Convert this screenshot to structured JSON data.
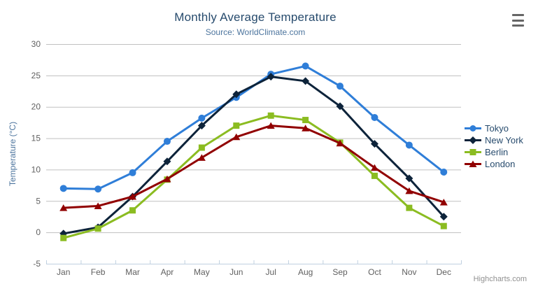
{
  "chart_data": {
    "type": "line",
    "title": "Monthly Average Temperature",
    "subtitle": "Source: WorldClimate.com",
    "categories": [
      "Jan",
      "Feb",
      "Mar",
      "Apr",
      "May",
      "Jun",
      "Jul",
      "Aug",
      "Sep",
      "Oct",
      "Nov",
      "Dec"
    ],
    "xlabel": "",
    "ylabel": "Temperature (°C)",
    "ylim": [
      -5,
      30
    ],
    "ytick_interval": 5,
    "ytick_labels": [
      "-5",
      "0",
      "5",
      "10",
      "15",
      "20",
      "25",
      "30"
    ],
    "grid": true,
    "legend_position": "right",
    "series": [
      {
        "name": "Tokyo",
        "color": "#2f7ed8",
        "marker": "circle",
        "values": [
          7.0,
          6.9,
          9.5,
          14.5,
          18.2,
          21.5,
          25.2,
          26.5,
          23.3,
          18.3,
          13.9,
          9.6
        ]
      },
      {
        "name": "New York",
        "color": "#0d233a",
        "marker": "diamond",
        "values": [
          -0.2,
          0.8,
          5.7,
          11.3,
          17.0,
          22.0,
          24.8,
          24.1,
          20.1,
          14.1,
          8.6,
          2.5
        ]
      },
      {
        "name": "Berlin",
        "color": "#8bbc21",
        "marker": "square",
        "values": [
          -0.9,
          0.6,
          3.5,
          8.4,
          13.5,
          17.0,
          18.6,
          17.9,
          14.3,
          9.0,
          3.9,
          1.0
        ]
      },
      {
        "name": "London",
        "color": "#910000",
        "marker": "triangle",
        "values": [
          3.9,
          4.2,
          5.7,
          8.5,
          11.9,
          15.2,
          17.0,
          16.6,
          14.2,
          10.3,
          6.6,
          4.8
        ]
      }
    ],
    "credits": "Highcharts.com"
  },
  "theme": {
    "title_color": "#274b6d",
    "subtitle_color": "#4d759e",
    "axis_label_color": "#606060",
    "axis_title_color": "#4d759e",
    "grid_color": "#c0c0c0",
    "axis_line_color": "#c0d0e0",
    "legend_text_color": "#274b6d",
    "credit_color": "#909090",
    "export_icon_color": "#666666",
    "background": "#ffffff"
  }
}
